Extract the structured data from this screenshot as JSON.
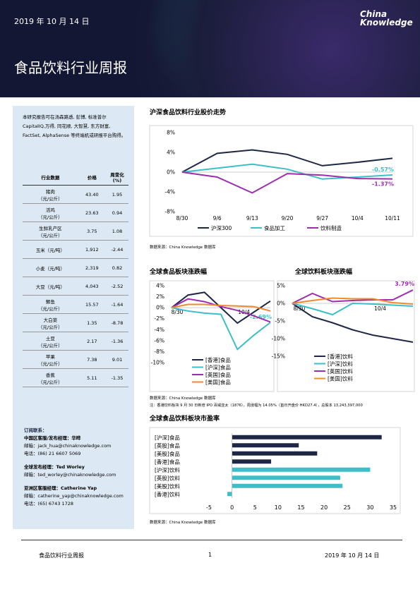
{
  "header": {
    "date": "2019 年 10 月 14 日",
    "logo_line1": "China",
    "logo_line2": "Knowledge",
    "title": "食品饮料行业周报"
  },
  "intro": "本研究报告可在汤森路透, 彭博, 标准普尔 CapitalIQ,万得, 同花顺, 大智慧, 东方财富, FactSet, AlphaSense 等终端机或研报平台购得。",
  "table": {
    "header": [
      "行业数据",
      "价格",
      "周变化(%)"
    ],
    "rows": [
      [
        "猪肉",
        "（元/公斤）",
        "43.40",
        "1.95"
      ],
      [
        "活鸡",
        "（元/公斤）",
        "23.63",
        "0.94"
      ],
      [
        "生鲜乳产区",
        "（元/公斤）",
        "3.75",
        "1.08"
      ],
      [
        "玉米（元/吨）",
        "",
        "1,912",
        "-2.44"
      ],
      [
        "小麦（元/吨）",
        "",
        "2,319",
        "0.82"
      ],
      [
        "大豆（元/吨）",
        "",
        "4,043",
        "-2.52"
      ],
      [
        "鲫鱼",
        "（元/公斤）",
        "15.57",
        "-1.64"
      ],
      [
        "大白菜",
        "（元/公斤）",
        "1.35",
        "-8.78"
      ],
      [
        "土豆",
        "（元/公斤）",
        "2.17",
        "-1.36"
      ],
      [
        "苹果",
        "（元/公斤）",
        "7.38",
        "9.01"
      ],
      [
        "香蕉",
        "（元/公斤）",
        "5.11",
        "-1.35"
      ]
    ]
  },
  "contacts": {
    "heading": "订阅联系：",
    "groups": [
      {
        "title": "中国区客服/发布经理：华晔",
        "lines": [
          "邮箱：jack_hua@chinaknowledge.com",
          "电话：(86) 21 6607 5069"
        ]
      },
      {
        "title": "全球发布经理：Ted Worley",
        "lines": [
          "邮箱：ted_worley@chinaknowledge.com"
        ]
      },
      {
        "title": "亚洲区客服经理：Catherine Yap",
        "lines": [
          "邮箱：catherine_yap@chinaknowledge.com",
          "电话：(65) 6743 1728"
        ]
      }
    ]
  },
  "chart_data": [
    {
      "type": "line",
      "title": "沪深食品饮料行业股价走势",
      "categories": [
        "8/30",
        "9/6",
        "9/13",
        "9/20",
        "9/27",
        "10/4",
        "10/11"
      ],
      "series": [
        {
          "name": "沪深300",
          "color": "#1f2747",
          "values": [
            0,
            3.8,
            4.5,
            3.6,
            1.3,
            2.0,
            2.8
          ]
        },
        {
          "name": "食品加工",
          "color": "#3bbfc8",
          "values": [
            0,
            0.8,
            1.6,
            0.6,
            -1.4,
            -1.0,
            -0.57
          ],
          "value_labels": [
            null,
            null,
            null,
            null,
            null,
            null,
            "-0.57%"
          ]
        },
        {
          "name": "饮料制造",
          "color": "#9b2fae",
          "values": [
            0,
            -1.0,
            -4.2,
            -0.3,
            -0.6,
            -1.3,
            -1.37
          ],
          "value_labels": [
            null,
            null,
            null,
            null,
            null,
            null,
            "-1.37%"
          ]
        }
      ],
      "ylim": [
        -8,
        8
      ],
      "yticks": [
        {
          "value": 8,
          "label": "8%"
        },
        {
          "value": 4,
          "label": "4%"
        },
        {
          "value": 0,
          "label": "0%"
        },
        {
          "value": -4,
          "label": "-4%"
        },
        {
          "value": -8,
          "label": "-8%"
        }
      ],
      "legend": "bottom",
      "source": "数据来源：China Knowledge 数据库"
    },
    {
      "type": "line",
      "title": "全球食品板块涨跌幅",
      "categories": [
        "8/30",
        null,
        null,
        null,
        null,
        "10/4",
        null
      ],
      "series": [
        {
          "name": "[香港]食品",
          "color": "#1f2747",
          "values": [
            0,
            2.3,
            2.8,
            0,
            -2.8,
            -0.8,
            1.2
          ]
        },
        {
          "name": "[沪深]食品",
          "color": "#3bbfc8",
          "values": [
            0,
            -0.6,
            -1.0,
            -1.2,
            -7.6,
            -5.0,
            -2.69
          ],
          "value_labels": [
            null,
            null,
            null,
            null,
            null,
            null,
            "-2.69%"
          ]
        },
        {
          "name": "[英国]食品",
          "color": "#9b2fae",
          "values": [
            0,
            1.6,
            1.1,
            0.2,
            -0.5,
            -1.5,
            -2.6
          ]
        },
        {
          "name": "[美国]食品",
          "color": "#f08a2c",
          "values": [
            0,
            0.6,
            0.6,
            0.4,
            0.3,
            0.2,
            -0.6
          ]
        }
      ],
      "ylim": [
        -10,
        4
      ],
      "yticks": [
        {
          "value": 4,
          "label": "4%"
        },
        {
          "value": 2,
          "label": "2%"
        },
        {
          "value": 0,
          "label": "0%"
        },
        {
          "value": -2,
          "label": "-2%"
        },
        {
          "value": -4,
          "label": "-4%"
        },
        {
          "value": -6,
          "label": "-6%"
        },
        {
          "value": -8,
          "label": "-8%"
        },
        {
          "value": -10,
          "label": "-10%"
        }
      ],
      "legend": "lower right",
      "source": "数据来源：China Knowledge 数据库"
    },
    {
      "type": "line",
      "title": "全球饮料板块涨跌幅",
      "categories": [
        "8/30",
        null,
        null,
        null,
        null,
        "10/4",
        null
      ],
      "series": [
        {
          "name": "[香港]饮料",
          "color": "#1f2747",
          "values": [
            0,
            -3.8,
            -5.5,
            -7.5,
            -9,
            -10,
            -11
          ]
        },
        {
          "name": "[沪深]饮料",
          "color": "#3bbfc8",
          "values": [
            0,
            -1.5,
            -3.2,
            0,
            -0.2,
            -0.5,
            -0.8
          ]
        },
        {
          "name": "[英国]饮料",
          "color": "#9b2fae",
          "values": [
            0,
            2.8,
            0.5,
            0.8,
            1.0,
            1.0,
            3.79
          ],
          "value_labels": [
            null,
            null,
            null,
            null,
            null,
            null,
            "3.79%"
          ]
        },
        {
          "name": "[美国]饮料",
          "color": "#f08a2c",
          "values": [
            0,
            0.8,
            1.5,
            1.3,
            1.3,
            0.2,
            -0.2
          ]
        }
      ],
      "ylim": [
        -15,
        5
      ],
      "yticks": [
        {
          "value": 5,
          "label": "5%"
        },
        {
          "value": 0,
          "label": "0%"
        },
        {
          "value": -5,
          "label": "-5%"
        },
        {
          "value": -10,
          "label": "-10%"
        },
        {
          "value": -15,
          "label": "-15%"
        }
      ],
      "legend": "lower right",
      "note": "注：香港饮料板块 9 月 30 日新增 IPO 百威亚太（1876），周涨幅为 14.05%（首日开盘价 HKD27.4），总股本 13,243,397,000"
    },
    {
      "type": "hbar",
      "title": "全球食品饮料板块市盈率",
      "categories": [
        "[沪深]食品",
        "[英股]食品",
        "[美股]食品",
        "[香港]食品",
        "[沪深]饮料",
        "[英股]饮料",
        "[美股]饮料",
        "[香港]饮料"
      ],
      "values": [
        32.5,
        14.5,
        18.5,
        8.5,
        30,
        23.5,
        24,
        -1
      ],
      "colors": [
        "#1f2747",
        "#1f2747",
        "#1f2747",
        "#1f2747",
        "#3bbfc8",
        "#3bbfc8",
        "#3bbfc8",
        "#3bbfc8"
      ],
      "xlim": [
        -5,
        35
      ],
      "xticks": [
        -5,
        0,
        5,
        10,
        15,
        20,
        25,
        30,
        35
      ],
      "source": "数据来源：China Knowledge 数据库"
    }
  ],
  "footer": {
    "left": "食品饮料行业周报",
    "page": "1",
    "right": "2019 年 10 月 14 日"
  }
}
